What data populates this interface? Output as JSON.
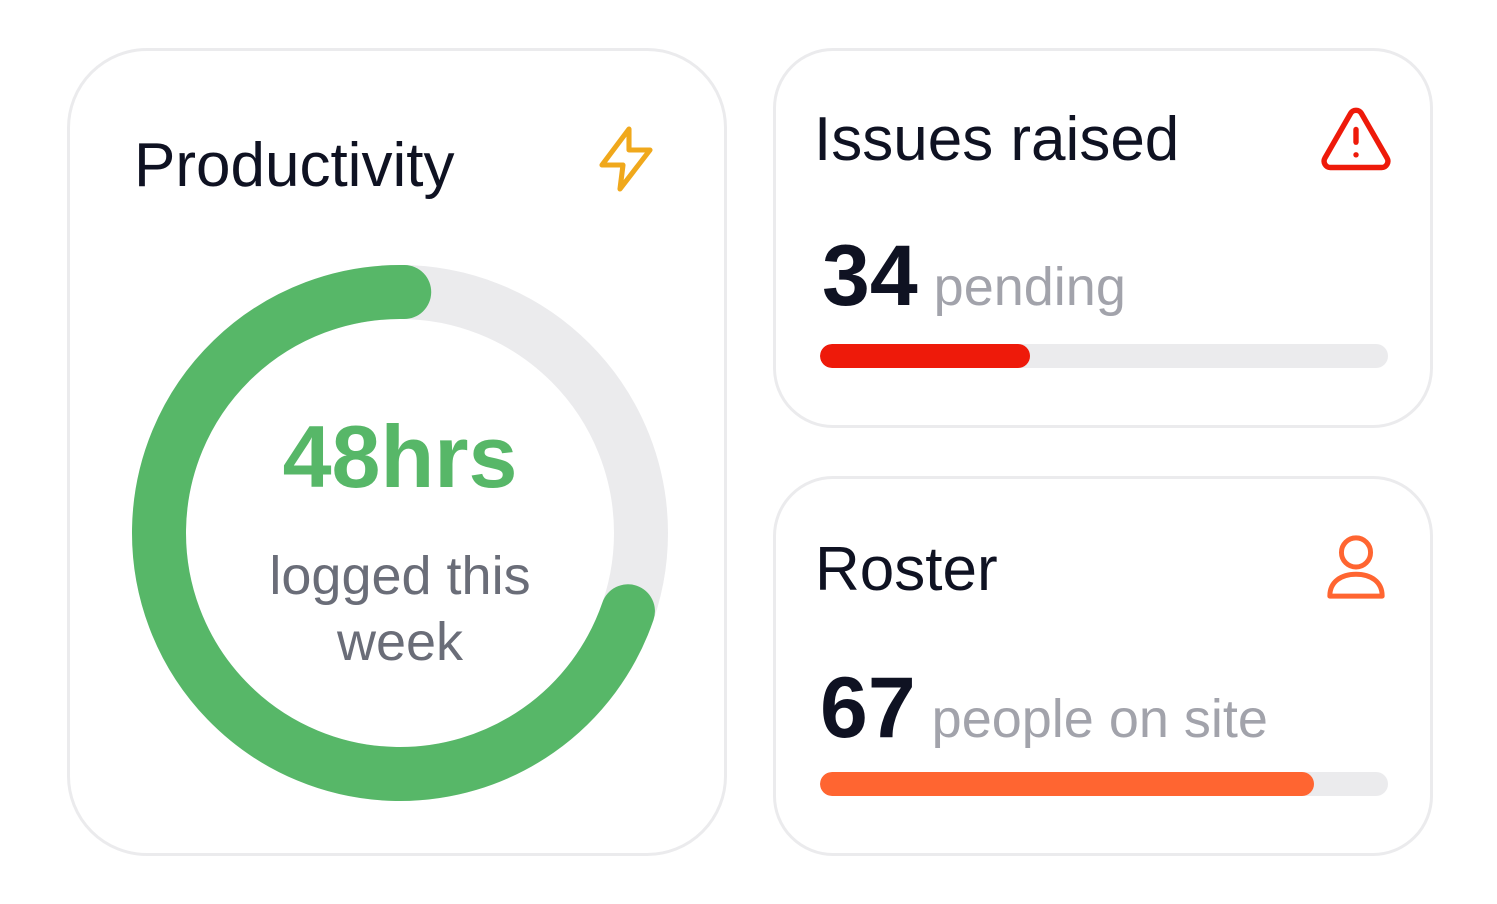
{
  "productivity": {
    "title": "Productivity",
    "icon": "bolt-icon",
    "value": "48hrs",
    "caption": "logged this week",
    "progress": 0.7,
    "colors": {
      "ring": "#57b768",
      "track": "#ebebed",
      "icon": "#f0a81c"
    }
  },
  "issues": {
    "title": "Issues raised",
    "icon": "alert-triangle-icon",
    "count": "34",
    "unit": "pending",
    "progress": 0.37,
    "colors": {
      "bar": "#ee1a0a",
      "icon": "#ee1a0a"
    }
  },
  "roster": {
    "title": "Roster",
    "icon": "user-icon",
    "count": "67",
    "unit": "people on site",
    "progress": 0.87,
    "colors": {
      "bar": "#ff6531",
      "icon": "#ff6531"
    }
  }
}
